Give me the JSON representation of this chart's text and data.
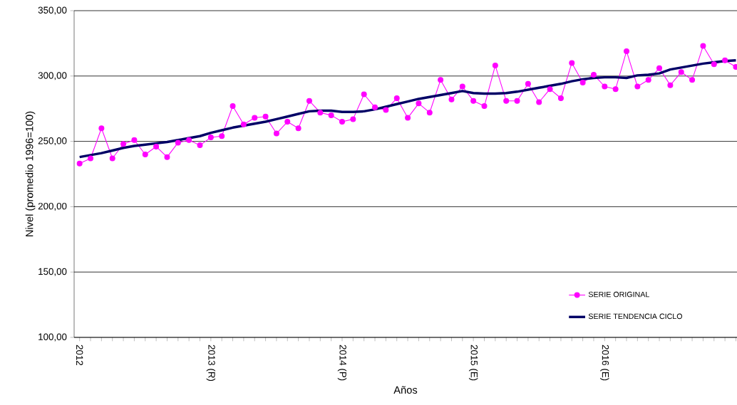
{
  "chart_data": {
    "type": "line",
    "xlabel": "Años",
    "ylabel": "Nivel (promedio 1996=100)",
    "categories": [
      "2012",
      null,
      null,
      null,
      null,
      null,
      null,
      null,
      null,
      null,
      null,
      null,
      "2013 (R)",
      null,
      null,
      null,
      null,
      null,
      null,
      null,
      null,
      null,
      null,
      null,
      "2014 (P)",
      null,
      null,
      null,
      null,
      null,
      null,
      null,
      null,
      null,
      null,
      null,
      "2015 (E)",
      null,
      null,
      null,
      null,
      null,
      null,
      null,
      null,
      null,
      null,
      null,
      "2016 (E)",
      null,
      null,
      null,
      null,
      null,
      null,
      null,
      null,
      null,
      null,
      null,
      null
    ],
    "series": [
      {
        "name": "SERIE ORIGINAL",
        "color": "#ff00ff",
        "marker": "circle",
        "values": [
          233,
          237,
          260,
          237,
          248,
          251,
          240,
          246,
          238,
          249,
          251,
          247,
          253,
          254,
          277,
          263,
          268,
          269,
          256,
          265,
          260,
          281,
          272,
          270,
          265,
          267,
          286,
          276,
          274,
          283,
          268,
          279,
          272,
          297,
          282,
          292,
          281,
          277,
          308,
          281,
          281,
          294,
          280,
          290,
          283,
          310,
          295,
          301,
          292,
          290,
          319,
          292,
          297,
          306,
          293,
          303,
          297,
          323,
          309,
          312,
          307
        ]
      },
      {
        "name": "SERIE TENDENCIA CICLO",
        "color": "#000066",
        "marker": "none",
        "values": [
          238,
          239.5,
          241,
          243,
          245,
          246.5,
          247.5,
          248.5,
          249.5,
          251,
          252.5,
          254,
          256.5,
          258.5,
          260.5,
          262,
          263.5,
          265,
          267,
          269,
          271,
          273,
          273.5,
          273.5,
          272.5,
          272.5,
          273,
          274.5,
          276.5,
          278.5,
          280.5,
          282.5,
          284,
          285.5,
          287,
          288.5,
          287,
          286.5,
          286.5,
          287,
          288,
          289.5,
          291,
          292.5,
          294,
          296,
          297.5,
          298.5,
          299,
          299,
          298.5,
          300.5,
          301,
          302,
          305,
          306.5,
          308,
          309.5,
          310.5,
          311.5,
          312
        ]
      }
    ],
    "ylim": [
      100,
      350
    ],
    "yticks": [
      {
        "value": 100,
        "label": "100,00"
      },
      {
        "value": 150,
        "label": "150,00"
      },
      {
        "value": 200,
        "label": "200,00"
      },
      {
        "value": 250,
        "label": "250,00"
      },
      {
        "value": 300,
        "label": "300,00"
      },
      {
        "value": 350,
        "label": "350,00"
      }
    ],
    "grid": "y",
    "legend": "bottom right"
  }
}
